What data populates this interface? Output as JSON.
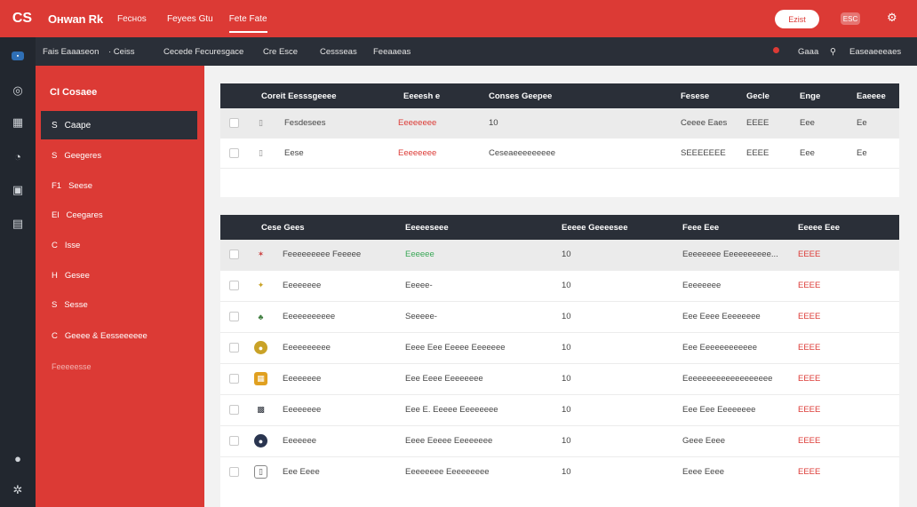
{
  "topbar": {
    "logo": "CS",
    "brand": "Oнwan Rk",
    "brand_sub": "Fecнos",
    "nav": [
      {
        "label": "Feyees Gtu",
        "active": false
      },
      {
        "label": "Fete Fate",
        "active": true
      }
    ],
    "button_label": "Ezist",
    "badge": "ESC"
  },
  "subbar": {
    "items": [
      "Fais Eaaaseon",
      "· Ceiss",
      "Cecede Fecuresgace",
      "Cre Esce",
      "Cessseas",
      "Feeaaeas"
    ],
    "right_label": "Gaaa",
    "right_label_2": "Easeaeeeaes"
  },
  "sidebar": {
    "heading": "CI Cosaee",
    "active_item": {
      "icon": "S",
      "label": "Caape"
    },
    "items": [
      {
        "icon": "S",
        "label": "Geegeres"
      },
      {
        "icon": "F1",
        "label": "Seese"
      },
      {
        "icon": "El",
        "label": "Ceegares"
      },
      {
        "icon": "C",
        "label": "Isse"
      },
      {
        "icon": "H",
        "label": "Gesee"
      },
      {
        "icon": "S",
        "label": "Sesse"
      },
      {
        "icon": "C",
        "label": "Geeee & Eesseeeeee"
      }
    ],
    "footer": "Feeeeesse"
  },
  "table1": {
    "headers": [
      "Coreit Eesssgeeee",
      "Eeeesh e",
      "Conses Geepee",
      "Fesese",
      "Gecle",
      "Enge",
      "Eaeeee"
    ],
    "rows": [
      {
        "name": "Fesdesees",
        "status": "Eeeeeeee",
        "col3": "10",
        "col4": "Ceeee Eaes",
        "col5": "EEEE",
        "col6": "Eee",
        "col7": "Ee"
      },
      {
        "name": "Eese",
        "status": "Eeeeeeee",
        "col3": "Ceseaeeeeeeeee",
        "col4": "SEEEEEEE",
        "col5": "EEEE",
        "col6": "Eee",
        "col7": "Ee"
      }
    ]
  },
  "table2": {
    "headers": [
      "Cese Gees",
      "Eeeeeseee",
      "Eeeee Geeeesee",
      "Feee Eee",
      "Eeeee Eee"
    ],
    "rows": [
      {
        "name": "Feeeeeeeee Feeeee",
        "status": "Eeeeee",
        "count": "10",
        "info": "Eeeeeeee Eeeeeeeeee...",
        "price": "EEEE"
      },
      {
        "name": "Eeeeeeee",
        "status": "Eeeee-",
        "count": "10",
        "info": "Eeeeeeee",
        "price": "EEEE"
      },
      {
        "name": "Eeeeeeeeeee",
        "status": "Seeeee-",
        "count": "10",
        "info": "Eee Eeee Eeeeeeee",
        "price": "EEEE"
      },
      {
        "name": "Eeeeeeeeee",
        "status": "Eeee Eee Eeeee Eeeeeee",
        "count": "10",
        "info": "Eee Eeeeeeeeeeee",
        "price": "EEEE"
      },
      {
        "name": "Eeeeeeee",
        "status": "Eee Eeee Eeeeeeee",
        "count": "10",
        "info": "Eeeeeeeeeeeeeeeeeee",
        "price": "EEEE"
      },
      {
        "name": "Eeeeeeee",
        "status": "Eee E. Eeeee Eeeeeeee",
        "count": "10",
        "info": "Eee Eee Eeeeeeee",
        "price": "EEEE"
      },
      {
        "name": "Eeeeeee",
        "status": "Eeee Eeeee Eeeeeeee",
        "count": "10",
        "info": "Geee Eeee",
        "price": "EEEE"
      },
      {
        "name": "Eee Eeee",
        "status": "Eeeeeeee Eeeeeeeee",
        "count": "10",
        "info": "Eeee Eeee",
        "price": "EEEE"
      }
    ]
  },
  "colors": {
    "accent": "#dc3a35",
    "dark": "#2a2f38"
  }
}
